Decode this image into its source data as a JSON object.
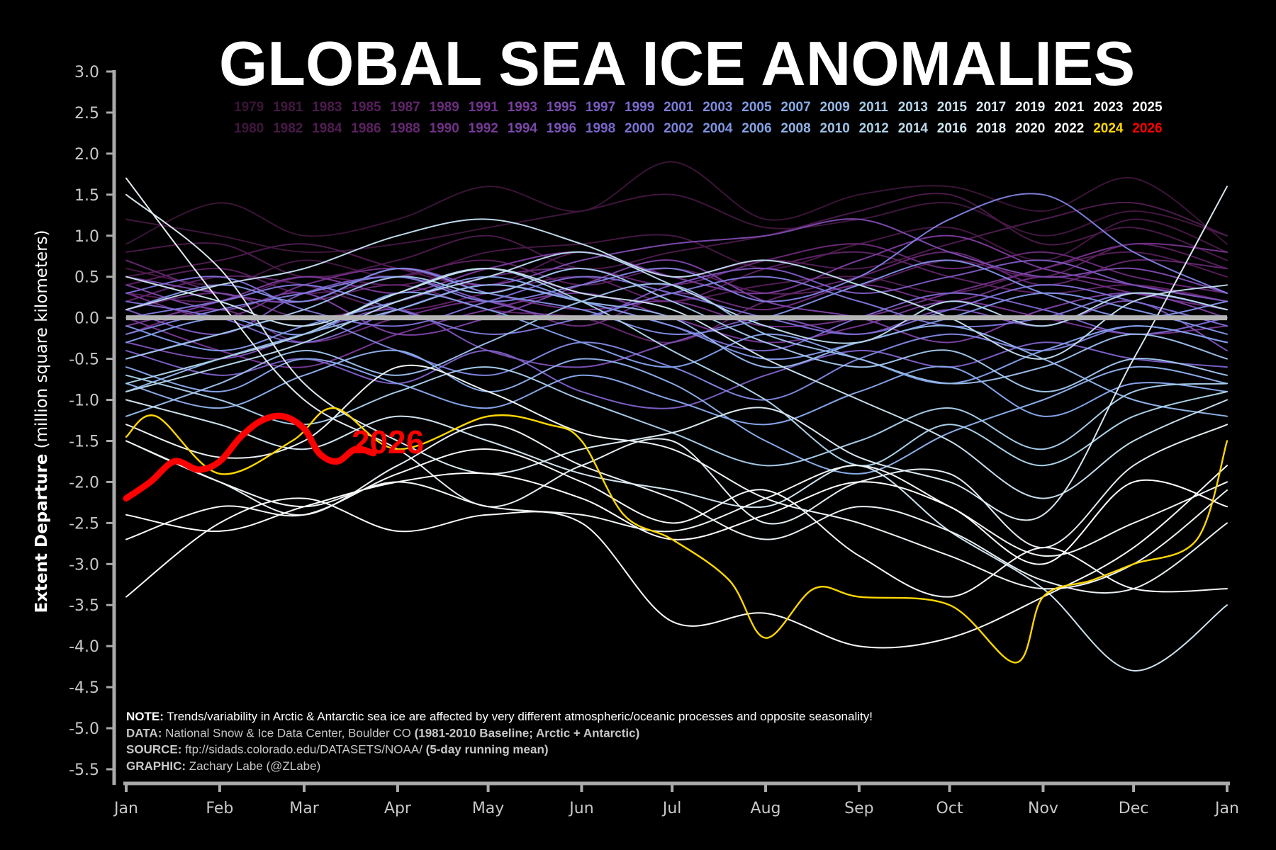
{
  "chart_data": {
    "type": "line",
    "title": "GLOBAL SEA ICE ANOMALIES",
    "ylabel_bold": "Extent Departure",
    "ylabel_rest": " (million square kilometers)",
    "ylim": [
      -5.5,
      3.0
    ],
    "yticks": [
      "3.0",
      "2.5",
      "2.0",
      "1.5",
      "1.0",
      "0.5",
      "0.0",
      "-0.5",
      "-1.0",
      "-1.5",
      "-2.0",
      "-2.5",
      "-3.0",
      "-3.5",
      "-4.0",
      "-4.5",
      "-5.0",
      "-5.5"
    ],
    "xticks": [
      "Jan",
      "Feb",
      "Mar",
      "Apr",
      "May",
      "Jun",
      "Jul",
      "Aug",
      "Sep",
      "Oct",
      "Nov",
      "Dec",
      "Jan"
    ],
    "x_unit": "day of year",
    "x_days": [
      0,
      31,
      59,
      90,
      120,
      151,
      181,
      212,
      243,
      273,
      304,
      334,
      365
    ],
    "grid": false,
    "legend_placement": "top (two rows of years)",
    "baseline_value": 0.0,
    "baseline_color": "#b4b4b4",
    "year_colors": [
      "#3a1436",
      "#5a1f5e",
      "#7a3a9a",
      "#7a6ad0",
      "#7f9ee6",
      "#a9cfe6",
      "#e6eef2",
      "#ffffff"
    ],
    "highlight_colors": {
      "2024": "#ffd700",
      "2026": "#ff0000"
    },
    "end_label": "2026",
    "series": [
      {
        "name": "1979",
        "values": [
          0.9,
          1.4,
          1.0,
          1.2,
          1.6,
          1.3,
          1.9,
          1.2,
          1.5,
          1.6,
          1.3,
          1.7,
          0.9
        ]
      },
      {
        "name": "1980",
        "values": [
          1.2,
          1.0,
          0.8,
          0.9,
          1.1,
          1.3,
          1.5,
          1.1,
          1.2,
          1.4,
          1.0,
          1.3,
          1.0
        ]
      },
      {
        "name": "1981",
        "values": [
          0.6,
          0.4,
          0.7,
          0.5,
          0.8,
          0.9,
          1.0,
          0.6,
          0.9,
          1.1,
          0.7,
          1.2,
          0.8
        ]
      },
      {
        "name": "1982",
        "values": [
          0.8,
          0.9,
          0.5,
          0.7,
          1.0,
          0.6,
          0.8,
          1.0,
          1.3,
          1.5,
          0.9,
          1.1,
          0.7
        ]
      },
      {
        "name": "1983",
        "values": [
          0.5,
          0.7,
          0.9,
          0.6,
          0.4,
          0.8,
          0.5,
          0.7,
          0.6,
          0.9,
          1.2,
          1.4,
          1.0
        ]
      },
      {
        "name": "1984",
        "values": [
          0.3,
          0.2,
          0.5,
          0.4,
          0.6,
          0.3,
          0.2,
          0.4,
          0.5,
          0.3,
          0.6,
          0.8,
          0.5
        ]
      },
      {
        "name": "1985",
        "values": [
          0.4,
          0.6,
          0.3,
          0.5,
          0.7,
          0.4,
          0.6,
          0.3,
          0.4,
          0.7,
          0.5,
          0.9,
          0.6
        ]
      },
      {
        "name": "1986",
        "values": [
          0.2,
          0.5,
          0.4,
          0.1,
          0.3,
          0.5,
          0.2,
          0.6,
          0.8,
          0.5,
          0.3,
          0.4,
          0.2
        ]
      },
      {
        "name": "1987",
        "values": [
          0.7,
          0.3,
          0.2,
          0.4,
          0.1,
          0.0,
          -0.3,
          0.2,
          0.5,
          0.8,
          0.4,
          0.7,
          0.6
        ]
      },
      {
        "name": "1988",
        "values": [
          0.1,
          0.3,
          0.0,
          0.2,
          0.5,
          0.6,
          0.4,
          0.7,
          0.9,
          0.6,
          0.8,
          0.5,
          0.3
        ]
      },
      {
        "name": "1989",
        "values": [
          -0.2,
          0.1,
          -0.3,
          0.0,
          0.2,
          -0.1,
          0.3,
          0.1,
          0.4,
          0.2,
          0.5,
          0.3,
          0.1
        ]
      },
      {
        "name": "1990",
        "values": [
          0.3,
          0.0,
          0.4,
          0.6,
          0.3,
          0.1,
          0.2,
          -0.1,
          0.0,
          0.3,
          0.6,
          0.9,
          0.8
        ]
      },
      {
        "name": "1991",
        "values": [
          0.0,
          -0.4,
          -0.6,
          -0.2,
          0.1,
          0.3,
          0.0,
          -0.3,
          -0.1,
          0.2,
          0.0,
          -0.2,
          -0.1
        ]
      },
      {
        "name": "1992",
        "values": [
          -0.1,
          0.2,
          0.5,
          0.3,
          0.6,
          0.8,
          0.5,
          0.3,
          0.7,
          1.0,
          0.6,
          0.4,
          0.2
        ]
      },
      {
        "name": "1993",
        "values": [
          0.4,
          0.1,
          0.3,
          -0.2,
          0.0,
          0.4,
          0.7,
          0.2,
          0.0,
          -0.3,
          0.1,
          0.3,
          0.0
        ]
      },
      {
        "name": "1994",
        "values": [
          0.5,
          0.3,
          0.2,
          0.6,
          0.4,
          0.7,
          0.9,
          1.0,
          1.2,
          0.8,
          0.5,
          0.6,
          0.3
        ]
      },
      {
        "name": "1995",
        "values": [
          -0.3,
          -0.5,
          -0.2,
          0.1,
          -0.4,
          -0.6,
          -0.3,
          0.0,
          -0.2,
          0.1,
          -0.1,
          0.2,
          -0.4
        ]
      },
      {
        "name": "1996",
        "values": [
          0.1,
          -0.2,
          0.3,
          0.5,
          0.2,
          0.0,
          0.4,
          0.6,
          0.3,
          0.5,
          0.7,
          0.4,
          0.2
        ]
      },
      {
        "name": "1997",
        "values": [
          -0.4,
          -0.7,
          -0.5,
          -0.8,
          -0.4,
          -0.9,
          -1.1,
          -0.7,
          -0.4,
          -0.6,
          -0.3,
          -0.5,
          -0.6
        ]
      },
      {
        "name": "1998",
        "values": [
          0.2,
          0.0,
          -0.3,
          0.1,
          0.4,
          0.2,
          -0.1,
          -0.4,
          0.0,
          0.3,
          0.1,
          -0.2,
          0.0
        ]
      },
      {
        "name": "1999",
        "values": [
          0.3,
          0.5,
          0.1,
          -0.1,
          0.2,
          0.5,
          0.3,
          0.0,
          -0.2,
          0.1,
          0.4,
          0.2,
          -0.1
        ]
      },
      {
        "name": "2000",
        "values": [
          0.0,
          0.2,
          0.4,
          0.1,
          -0.2,
          0.0,
          0.3,
          0.5,
          0.2,
          -0.1,
          0.0,
          0.3,
          0.1
        ]
      },
      {
        "name": "2001",
        "values": [
          -0.2,
          0.1,
          0.3,
          0.5,
          0.2,
          0.4,
          0.6,
          0.2,
          0.5,
          1.2,
          1.5,
          0.8,
          0.3
        ]
      },
      {
        "name": "2002",
        "values": [
          -0.5,
          -0.2,
          0.0,
          -0.4,
          -0.7,
          -0.3,
          -0.6,
          -1.0,
          -0.5,
          -0.2,
          -0.4,
          -0.1,
          -0.3
        ]
      },
      {
        "name": "2003",
        "values": [
          0.1,
          0.4,
          0.2,
          0.6,
          0.3,
          0.1,
          -0.2,
          0.0,
          0.4,
          0.7,
          0.3,
          0.0,
          0.2
        ]
      },
      {
        "name": "2004",
        "values": [
          -0.1,
          -0.4,
          -0.1,
          0.2,
          0.5,
          0.2,
          -0.1,
          -0.5,
          -0.3,
          0.0,
          0.3,
          0.1,
          -0.2
        ]
      },
      {
        "name": "2005",
        "values": [
          -0.3,
          0.0,
          -0.2,
          0.3,
          0.1,
          -0.3,
          -0.6,
          -0.2,
          -0.5,
          -0.8,
          -0.4,
          -0.1,
          -0.3
        ]
      },
      {
        "name": "2006",
        "values": [
          -0.6,
          -0.9,
          -0.5,
          -0.8,
          -1.1,
          -0.7,
          -1.0,
          -1.3,
          -0.9,
          -0.6,
          -1.2,
          -0.8,
          -0.9
        ]
      },
      {
        "name": "2007",
        "values": [
          -0.8,
          -1.1,
          -0.7,
          -0.4,
          -0.9,
          -0.5,
          -0.8,
          -1.5,
          -1.9,
          -1.4,
          -1.0,
          -0.6,
          -0.8
        ]
      },
      {
        "name": "2008",
        "values": [
          -0.9,
          -0.5,
          -0.2,
          0.1,
          0.4,
          0.2,
          0.0,
          -0.6,
          -0.3,
          -0.1,
          -0.5,
          -1.0,
          -1.2
        ]
      },
      {
        "name": "2009",
        "values": [
          -1.2,
          -0.8,
          -0.4,
          -0.7,
          -0.3,
          0.2,
          0.4,
          -0.2,
          -0.5,
          -0.8,
          -0.6,
          -0.2,
          -0.5
        ]
      },
      {
        "name": "2010",
        "values": [
          -0.5,
          -0.2,
          0.1,
          0.5,
          0.3,
          0.6,
          0.2,
          -0.3,
          -0.6,
          -0.4,
          -0.9,
          -0.5,
          -0.7
        ]
      },
      {
        "name": "2011",
        "values": [
          -0.7,
          -1.0,
          -1.3,
          -0.9,
          -0.6,
          -1.0,
          -1.4,
          -1.8,
          -1.5,
          -1.1,
          -1.6,
          -0.9,
          -0.8
        ]
      },
      {
        "name": "2012",
        "values": [
          -0.8,
          -0.5,
          -0.2,
          0.3,
          0.6,
          0.2,
          -0.4,
          -1.0,
          -1.8,
          -1.3,
          -1.8,
          -1.2,
          -0.9
        ]
      },
      {
        "name": "2013",
        "values": [
          -0.9,
          -0.6,
          -0.3,
          0.2,
          0.5,
          0.8,
          0.4,
          -0.1,
          -0.3,
          0.2,
          -0.1,
          0.3,
          0.1
        ]
      },
      {
        "name": "2014",
        "values": [
          0.1,
          0.4,
          0.6,
          1.0,
          1.2,
          0.9,
          0.5,
          0.7,
          0.4,
          0.0,
          -0.5,
          0.2,
          0.4
        ]
      },
      {
        "name": "2015",
        "values": [
          0.5,
          0.2,
          -0.1,
          0.3,
          0.6,
          0.3,
          0.1,
          -0.5,
          -1.0,
          -1.5,
          -2.2,
          -1.5,
          -1.0
        ]
      },
      {
        "name": "2016",
        "values": [
          -1.0,
          -1.3,
          -1.6,
          -1.2,
          -1.5,
          -1.9,
          -2.1,
          -2.3,
          -1.8,
          -2.6,
          -3.3,
          -4.3,
          -3.5
        ]
      },
      {
        "name": "2017",
        "values": [
          1.5,
          0.6,
          -0.8,
          -1.5,
          -1.9,
          -1.6,
          -1.4,
          -1.1,
          -1.7,
          -2.0,
          -2.4,
          -0.5,
          1.6
        ]
      },
      {
        "name": "2018",
        "values": [
          1.7,
          0.2,
          -1.0,
          -1.6,
          -2.3,
          -1.8,
          -1.5,
          -2.5,
          -2.0,
          -1.9,
          -2.8,
          -1.8,
          -1.3
        ]
      },
      {
        "name": "2019",
        "values": [
          -1.5,
          -2.0,
          -2.4,
          -1.8,
          -1.3,
          -1.8,
          -2.2,
          -2.7,
          -2.3,
          -2.6,
          -3.2,
          -3.3,
          -2.5
        ]
      },
      {
        "name": "2020",
        "values": [
          -1.3,
          -1.7,
          -1.5,
          -0.6,
          -0.9,
          -1.4,
          -1.6,
          -2.2,
          -2.5,
          -2.9,
          -3.3,
          -3.0,
          -2.1
        ]
      },
      {
        "name": "2021",
        "values": [
          -1.5,
          -2.0,
          -2.3,
          -2.0,
          -2.3,
          -2.4,
          -2.6,
          -2.2,
          -1.8,
          -2.3,
          -2.9,
          -2.5,
          -2.0
        ]
      },
      {
        "name": "2022",
        "values": [
          -2.7,
          -2.3,
          -2.4,
          -1.9,
          -1.6,
          -2.0,
          -2.5,
          -2.1,
          -2.9,
          -3.4,
          -2.8,
          -3.3,
          -3.3
        ]
      },
      {
        "name": "2023",
        "values": [
          -3.4,
          -2.5,
          -2.2,
          -2.6,
          -2.4,
          -2.5,
          -3.7,
          -3.6,
          -4.0,
          -3.9,
          -3.4,
          -2.8,
          -1.8
        ]
      },
      {
        "name": "2024",
        "x": [
          0,
          10,
          31,
          55,
          69,
          90,
          120,
          140,
          151,
          165,
          181,
          200,
          212,
          228,
          243,
          273,
          295,
          304,
          320,
          334,
          355,
          365
        ],
        "values": [
          -1.45,
          -1.2,
          -1.9,
          -1.5,
          -1.1,
          -1.6,
          -1.2,
          -1.3,
          -1.5,
          -2.4,
          -2.7,
          -3.2,
          -3.9,
          -3.3,
          -3.4,
          -3.5,
          -4.2,
          -3.4,
          -3.2,
          -3.0,
          -2.7,
          -1.5
        ]
      },
      {
        "name": "2025",
        "values": [
          -2.4,
          -2.6,
          -2.3,
          -2.0,
          -1.9,
          -2.2,
          -2.7,
          -2.4,
          -2.0,
          -2.3,
          -3.0,
          -2.0,
          -2.3
        ]
      },
      {
        "name": "2026",
        "x": [
          0,
          8,
          16,
          24,
          31,
          38,
          45,
          52,
          59,
          64,
          70,
          76,
          82
        ],
        "values": [
          -2.2,
          -2.0,
          -1.75,
          -1.85,
          -1.75,
          -1.45,
          -1.25,
          -1.2,
          -1.35,
          -1.65,
          -1.75,
          -1.6,
          -1.65
        ]
      }
    ],
    "legend_row1": [
      "1979",
      "1981",
      "1983",
      "1985",
      "1987",
      "1989",
      "1991",
      "1993",
      "1995",
      "1997",
      "1999",
      "2001",
      "2003",
      "2005",
      "2007",
      "2009",
      "2011",
      "2013",
      "2015",
      "2017",
      "2019",
      "2021",
      "2023",
      "2025"
    ],
    "legend_row2": [
      "1980",
      "1982",
      "1984",
      "1986",
      "1988",
      "1990",
      "1992",
      "1994",
      "1996",
      "1998",
      "2000",
      "2002",
      "2004",
      "2006",
      "2008",
      "2010",
      "2012",
      "2014",
      "2016",
      "2018",
      "2020",
      "2022",
      "2024",
      "2026"
    ]
  },
  "notes": [
    {
      "label": "NOTE:",
      "text": " Trends/variability in Arctic & Antarctic sea ice are affected by very different atmospheric/oceanic processes and opposite seasonality!",
      "bold_tail": ""
    },
    {
      "label": "DATA:",
      "text": " National Snow & Ice Data Center, Boulder CO ",
      "bold_tail": "(1981-2010 Baseline; Arctic + Antarctic)"
    },
    {
      "label": "SOURCE:",
      "text": " ftp://sidads.colorado.edu/DATASETS/NOAA/ ",
      "bold_tail": "(5-day running mean)"
    },
    {
      "label": "GRAPHIC:",
      "text": " Zachary Labe (@ZLabe)",
      "bold_tail": ""
    }
  ]
}
